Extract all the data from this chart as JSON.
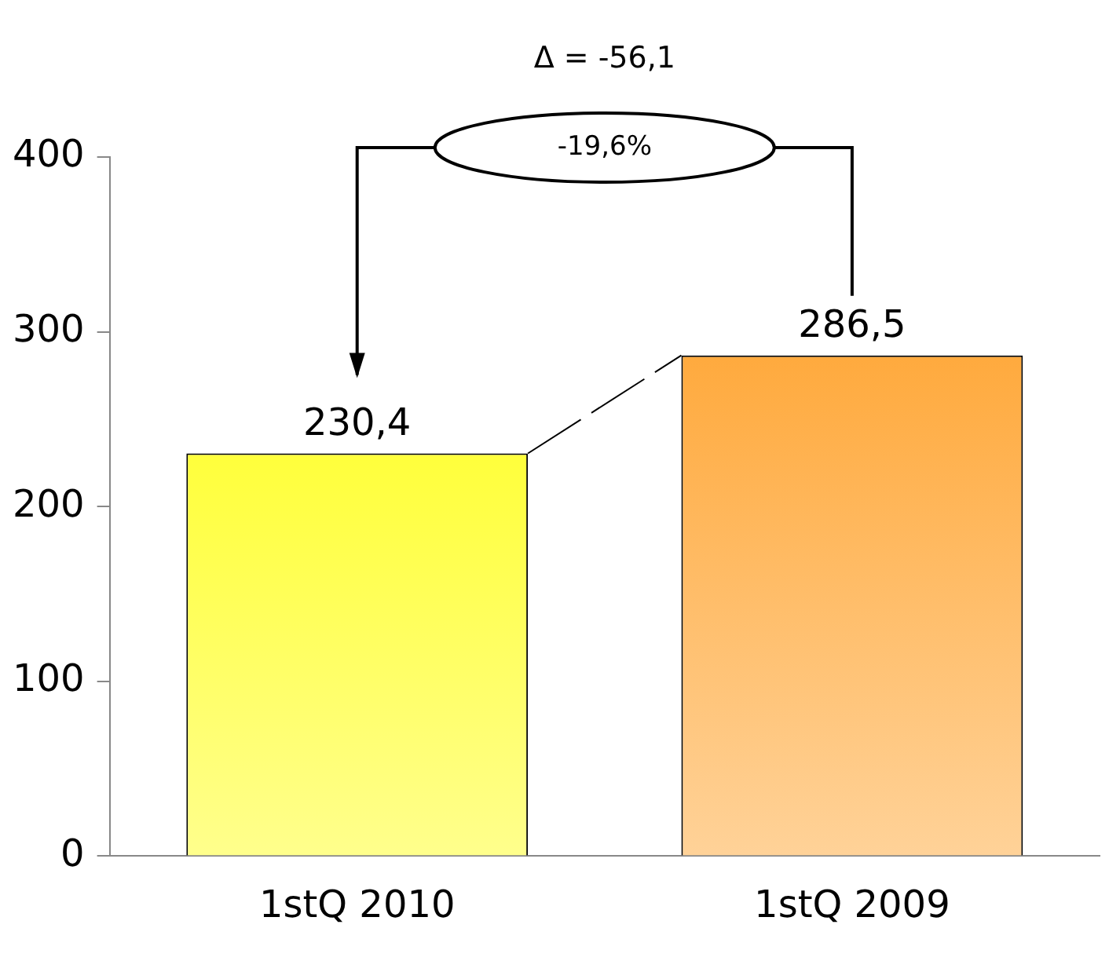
{
  "chart_data": {
    "type": "bar",
    "categories": [
      "1stQ 2010",
      "1stQ 2009"
    ],
    "values": [
      230.4,
      286.5
    ],
    "value_labels": [
      "230,4",
      "286,5"
    ],
    "colors": [
      "#ffff00",
      "#ff9a1a"
    ],
    "ylim": [
      0,
      400
    ],
    "yticks": [
      0,
      100,
      200,
      300,
      400
    ],
    "grid": false,
    "legend": false,
    "annotations": [
      "Δ = -56,1",
      "-19,6%"
    ]
  }
}
